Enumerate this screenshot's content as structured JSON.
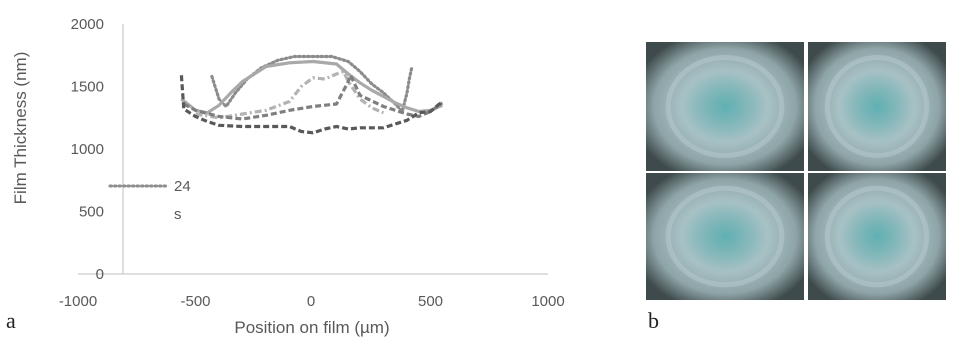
{
  "panel_labels": {
    "a": "a",
    "b": "b"
  },
  "chart_data": {
    "type": "line",
    "title": "",
    "xlabel": "Position on film (µm)",
    "ylabel": "Film Thickness (nm)",
    "xlim": [
      -1000,
      1000
    ],
    "ylim": [
      0,
      2000
    ],
    "xticks": [
      "-1000",
      "-500",
      "0",
      "500",
      "1000"
    ],
    "yticks": [
      "0",
      "500",
      "1000",
      "1500",
      "2000"
    ],
    "grid": false,
    "legend": {
      "placement": "left",
      "entries": [
        {
          "text_lines": [
            "24",
            "s"
          ],
          "series_index": 0
        }
      ]
    },
    "series": [
      {
        "color": "#8c8c8c",
        "style": "dotted",
        "x": [
          -430,
          -400,
          -370,
          -330,
          -280,
          -220,
          -150,
          -80,
          0,
          80,
          150,
          200,
          250,
          300,
          350,
          380,
          400,
          410,
          420
        ],
        "y": [
          1580,
          1400,
          1340,
          1450,
          1560,
          1650,
          1710,
          1740,
          1740,
          1740,
          1700,
          1620,
          1520,
          1450,
          1360,
          1300,
          1450,
          1560,
          1650
        ]
      },
      {
        "color": "#a9a9a9",
        "style": "solid",
        "x": [
          -560,
          -500,
          -450,
          -400,
          -350,
          -300,
          -250,
          -200,
          -100,
          0,
          100,
          150,
          200,
          250,
          300,
          350,
          400,
          450,
          500,
          550
        ],
        "y": [
          1400,
          1310,
          1290,
          1350,
          1450,
          1540,
          1600,
          1660,
          1690,
          1700,
          1680,
          1600,
          1530,
          1470,
          1420,
          1370,
          1330,
          1300,
          1310,
          1350
        ]
      },
      {
        "color": "#b3b3b3",
        "style": "dashdot",
        "x": [
          -500,
          -400,
          -300,
          -200,
          -100,
          -50,
          0,
          50,
          100,
          130,
          150,
          200,
          250,
          300
        ],
        "y": [
          1280,
          1250,
          1280,
          1310,
          1380,
          1500,
          1570,
          1560,
          1600,
          1620,
          1540,
          1400,
          1330,
          1290
        ]
      },
      {
        "color": "#7f7f7f",
        "style": "dashed",
        "x": [
          -550,
          -500,
          -400,
          -300,
          -200,
          -100,
          0,
          100,
          150,
          160,
          200,
          300,
          400,
          450,
          500,
          550
        ],
        "y": [
          1360,
          1310,
          1260,
          1240,
          1270,
          1310,
          1340,
          1360,
          1540,
          1590,
          1430,
          1340,
          1280,
          1260,
          1300,
          1370
        ]
      },
      {
        "color": "#595959",
        "style": "dashed",
        "x": [
          -560,
          -550,
          -500,
          -450,
          -400,
          -300,
          -200,
          -100,
          -50,
          0,
          50,
          100,
          150,
          200,
          300,
          400,
          450,
          500,
          550
        ],
        "y": [
          1590,
          1320,
          1260,
          1220,
          1190,
          1180,
          1180,
          1180,
          1140,
          1130,
          1160,
          1180,
          1160,
          1170,
          1170,
          1230,
          1290,
          1300,
          1380
        ]
      }
    ]
  },
  "micrographs": [
    {
      "name": "micrograph-1"
    },
    {
      "name": "micrograph-2"
    },
    {
      "name": "micrograph-3"
    },
    {
      "name": "micrograph-4"
    }
  ]
}
